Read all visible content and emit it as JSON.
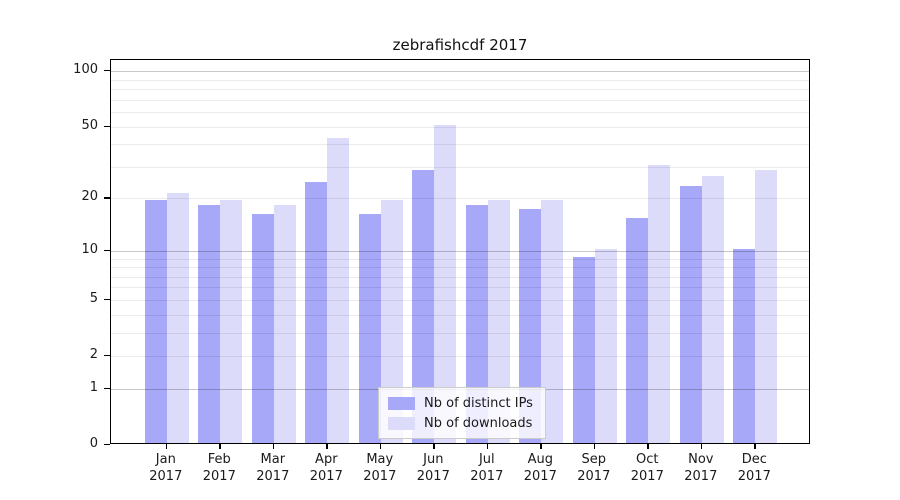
{
  "chart_data": {
    "type": "bar",
    "title": "zebrafishcdf 2017",
    "year_label": "2017",
    "categories": [
      "Jan",
      "Feb",
      "Mar",
      "Apr",
      "May",
      "Jun",
      "Jul",
      "Aug",
      "Sep",
      "Oct",
      "Nov",
      "Dec"
    ],
    "series": [
      {
        "name": "Nb of distinct IPs",
        "color": "#a8a8f8",
        "values": [
          19,
          18,
          16,
          24,
          16,
          28,
          18,
          17,
          9,
          15,
          23,
          10
        ]
      },
      {
        "name": "Nb of downloads",
        "color": "#dcdcfa",
        "values": [
          21,
          19,
          18,
          42,
          19,
          50,
          19,
          19,
          10,
          30,
          26,
          28
        ]
      }
    ],
    "yscale": "log1p",
    "yticks": [
      0,
      1,
      2,
      5,
      10,
      20,
      50,
      100
    ],
    "ylim": [
      0,
      115
    ],
    "grid": true,
    "legend_position": "lower center",
    "xlabel": "",
    "ylabel": ""
  },
  "colors": {
    "grid_major": "rgba(0,0,0,0.22)",
    "grid_minor": "rgba(0,0,0,0.08)",
    "axis": "#000000",
    "text": "#1a1a1a",
    "legend_border": "#cccccc",
    "legend_bg": "rgba(255,255,255,0.8)"
  }
}
